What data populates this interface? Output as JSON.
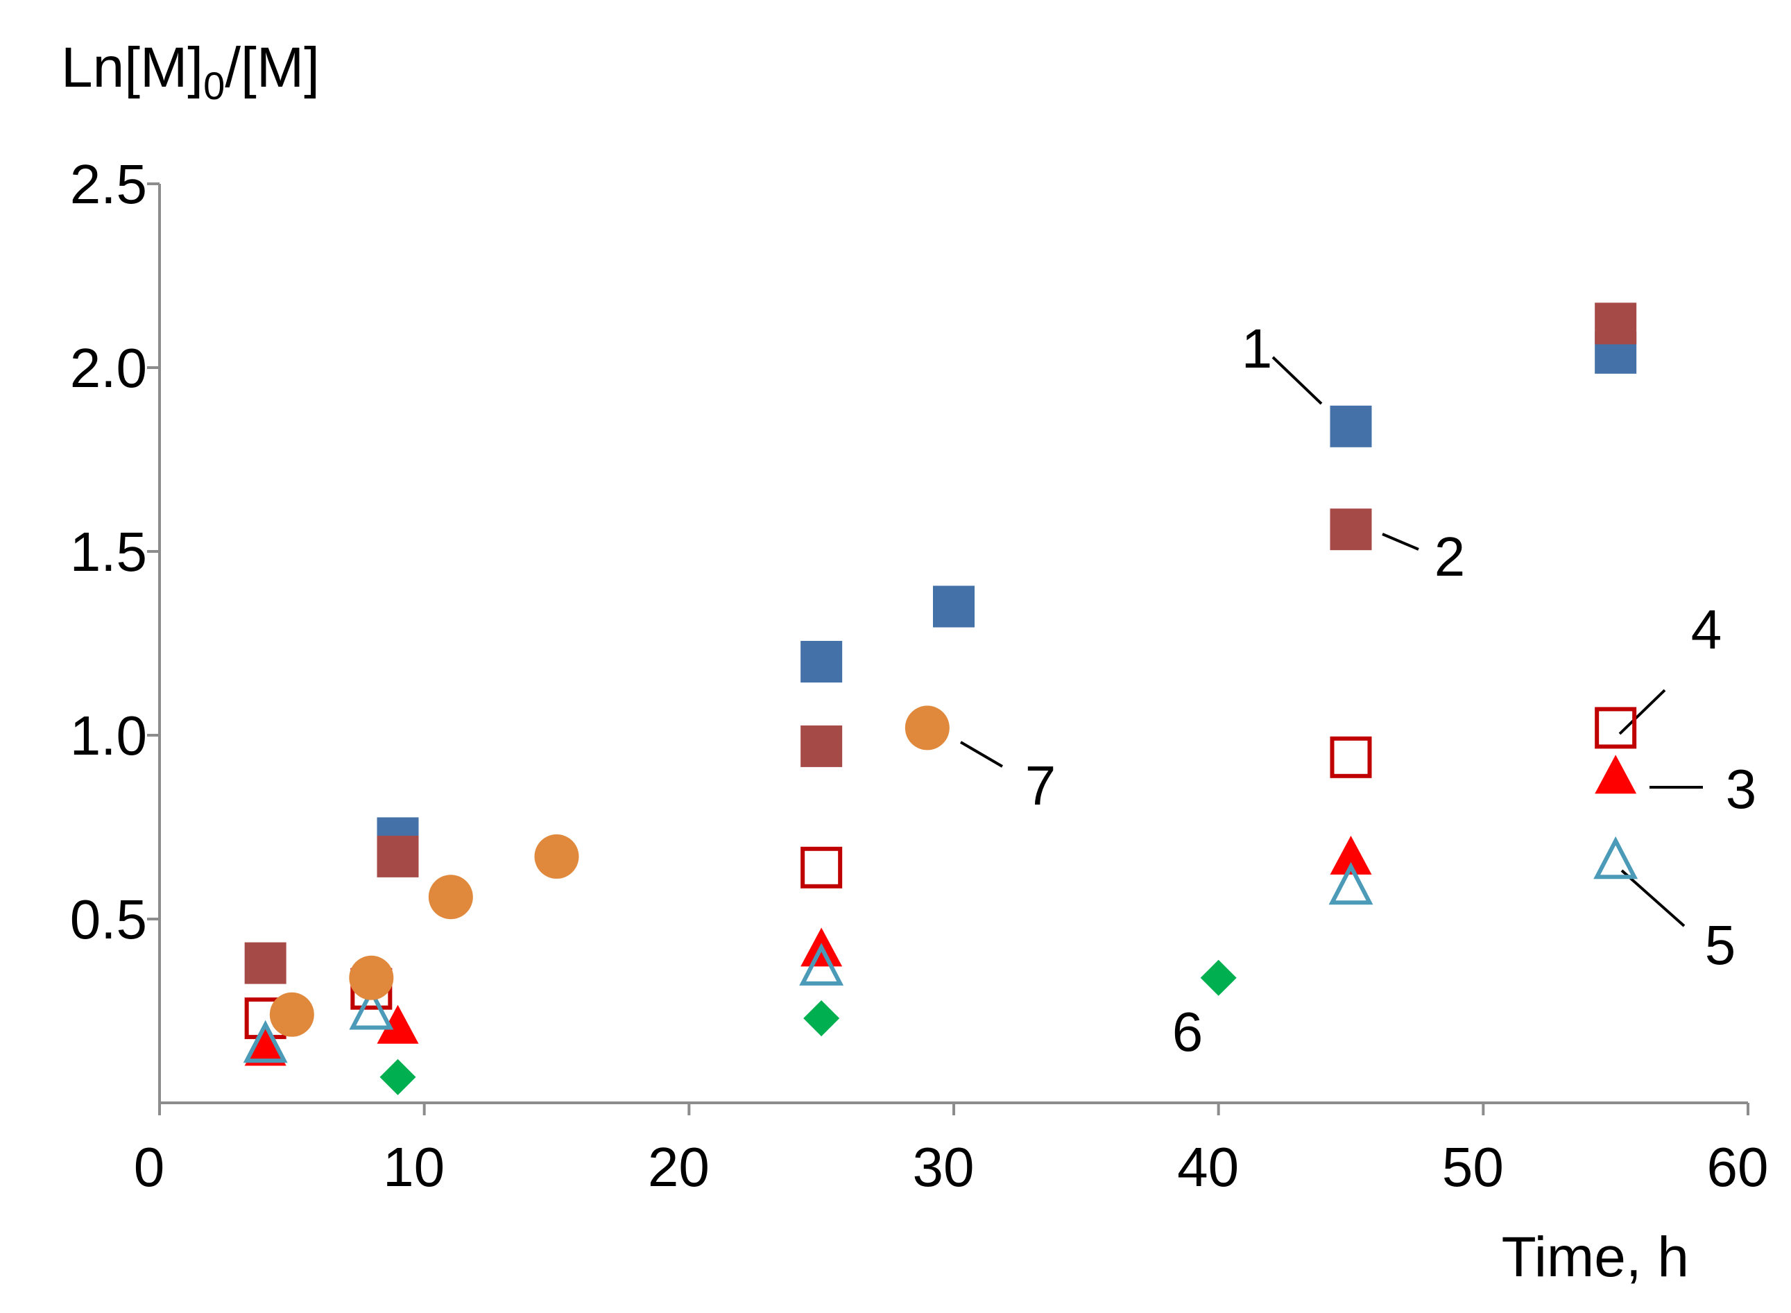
{
  "chart_data": {
    "type": "scatter",
    "title": "",
    "xlabel": "Time, h",
    "ylabel_parts": {
      "prefix": "Ln[M]",
      "subscript": "0",
      "suffix": "/[M]"
    },
    "xlim": [
      0,
      60
    ],
    "ylim": [
      0,
      2.5
    ],
    "x_ticks": [
      "0",
      "10",
      "20",
      "30",
      "40",
      "50",
      "60"
    ],
    "y_ticks": [
      "0.5",
      "1.0",
      "1.5",
      "2.0",
      "2.5"
    ],
    "grid": false,
    "legend": "none",
    "series": [
      {
        "name": "1",
        "marker": "square-filled",
        "color": "#4472a8",
        "x": [
          9,
          25,
          30,
          45,
          55
        ],
        "y": [
          0.72,
          1.2,
          1.35,
          1.84,
          2.04
        ]
      },
      {
        "name": "2",
        "marker": "square-filled",
        "color": "#a64a47",
        "x": [
          4,
          9,
          25,
          45,
          55
        ],
        "y": [
          0.38,
          0.67,
          0.97,
          1.56,
          2.12
        ]
      },
      {
        "name": "3",
        "marker": "triangle-filled",
        "color": "#ff0000",
        "x": [
          4,
          9,
          25,
          45,
          55
        ],
        "y": [
          0.15,
          0.21,
          0.42,
          0.67,
          0.89
        ]
      },
      {
        "name": "4",
        "marker": "square-open",
        "color": "#c00000",
        "x": [
          4,
          8,
          25,
          45,
          55
        ],
        "y": [
          0.23,
          0.31,
          0.64,
          0.94,
          1.02
        ]
      },
      {
        "name": "5",
        "marker": "triangle-open",
        "color": "#4a9ab8",
        "x": [
          4,
          8,
          25,
          45,
          55
        ],
        "y": [
          0.16,
          0.25,
          0.37,
          0.59,
          0.66
        ]
      },
      {
        "name": "6",
        "marker": "diamond-filled",
        "color": "#00b050",
        "x": [
          9,
          25,
          40
        ],
        "y": [
          0.07,
          0.23,
          0.34
        ]
      },
      {
        "name": "7",
        "marker": "circle-filled",
        "color": "#e0893c",
        "x": [
          5,
          8,
          11,
          15,
          29
        ],
        "y": [
          0.24,
          0.34,
          0.56,
          0.67,
          1.02
        ]
      }
    ],
    "annotations": [
      {
        "text": "1",
        "series": "1"
      },
      {
        "text": "2",
        "series": "2"
      },
      {
        "text": "3",
        "series": "3"
      },
      {
        "text": "4",
        "series": "4"
      },
      {
        "text": "5",
        "series": "5"
      },
      {
        "text": "6",
        "series": "6"
      },
      {
        "text": "7",
        "series": "7"
      }
    ]
  }
}
